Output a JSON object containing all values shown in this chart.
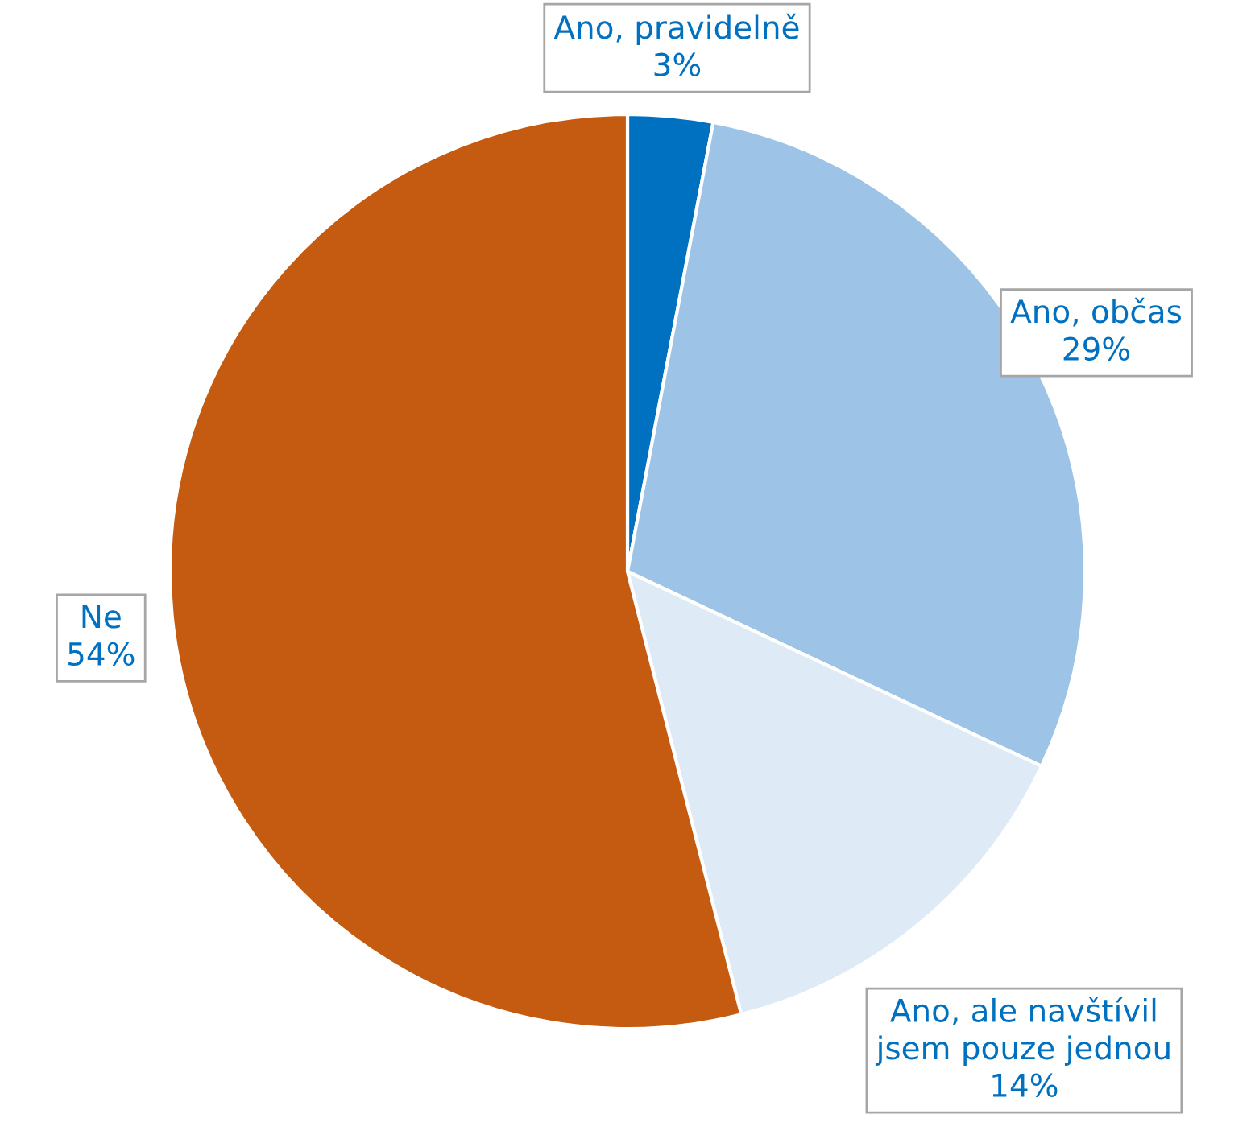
{
  "chart_data": {
    "type": "pie",
    "categories": [
      "Ano, pravidelně",
      "Ano, občas",
      "Ano, ale navštívil\njsem pouze jednou",
      "Ne"
    ],
    "values": [
      3,
      29,
      14,
      54
    ],
    "value_labels": [
      "3%",
      "29%",
      "14%",
      "54%"
    ],
    "colors": [
      "#0070c0",
      "#9dc3e6",
      "#deebf7",
      "#c55a11"
    ],
    "legend": false
  }
}
